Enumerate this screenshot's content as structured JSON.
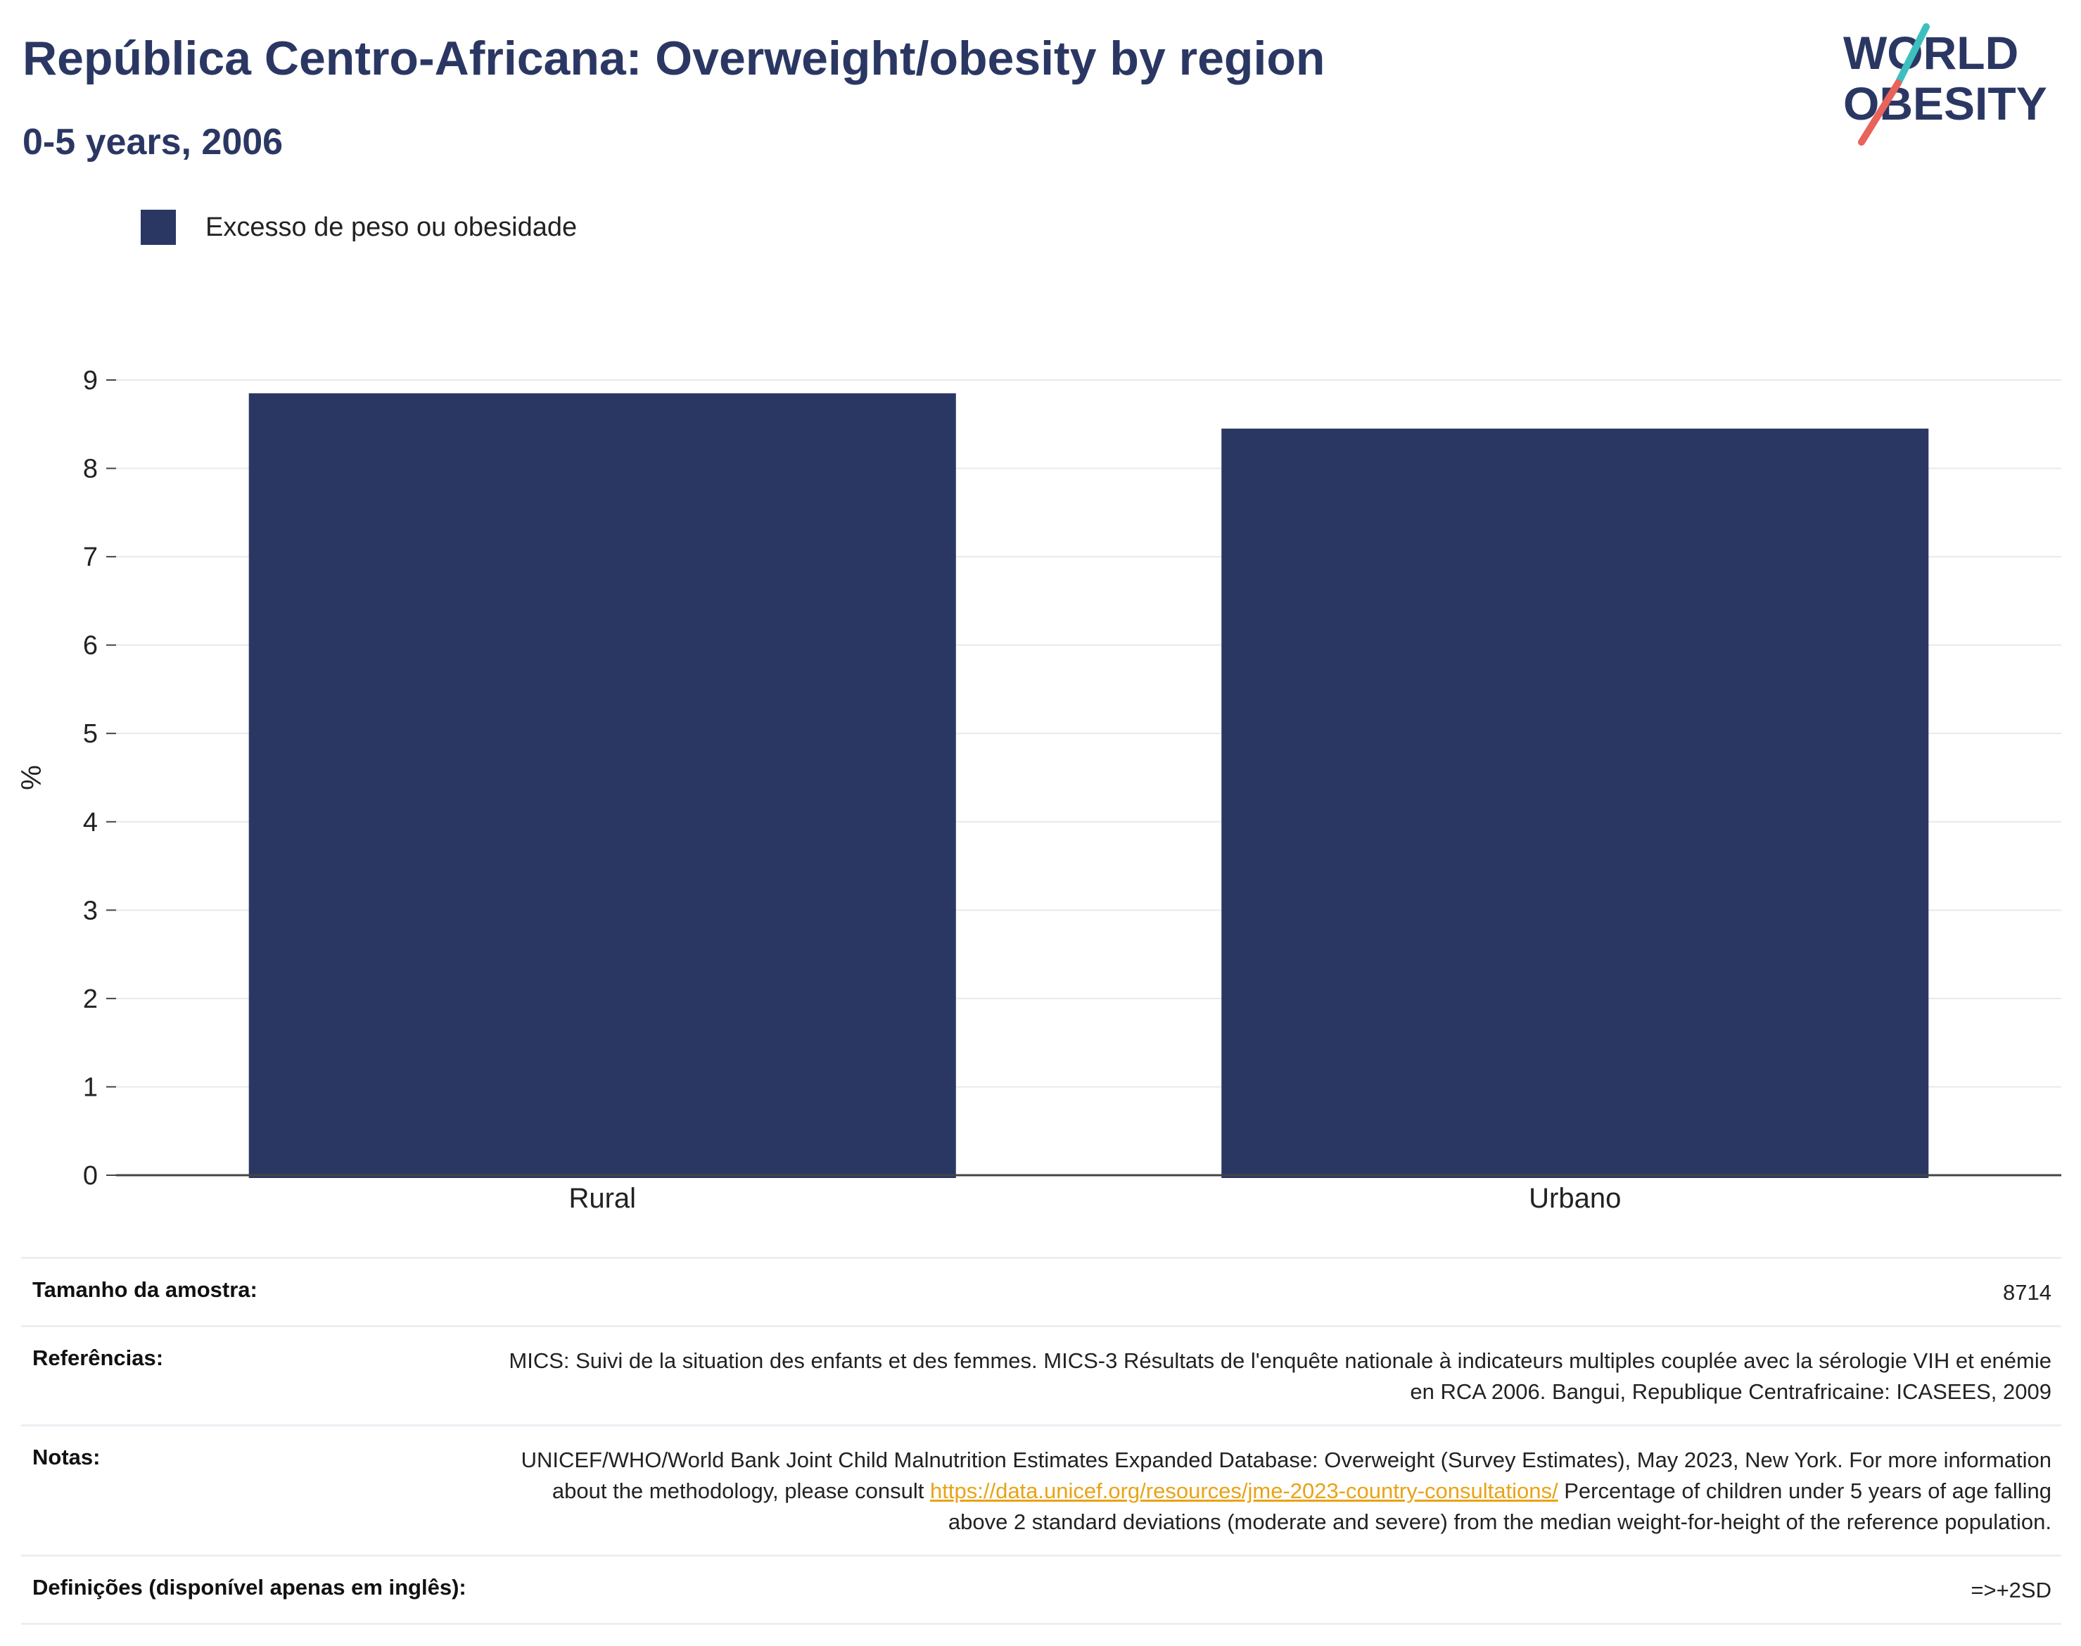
{
  "header": {
    "title": "República Centro-Africana: Overweight/obesity by region",
    "subtitle": "0-5 years, 2006"
  },
  "logo": {
    "line1": "WORLD",
    "line2": "OBESITY",
    "text_color": "#2b3763",
    "slash_top_color": "#3dbfbf",
    "slash_bottom_color": "#e8635a"
  },
  "legend": {
    "label": "Excesso de peso ou obesidade",
    "color": "#2b3763"
  },
  "chart_data": {
    "type": "bar",
    "categories": [
      "Rural",
      "Urbano"
    ],
    "series": [
      {
        "name": "Excesso de peso ou obesidade",
        "values": [
          8.85,
          8.45
        ],
        "color": "#2b3763"
      }
    ],
    "ylabel": "%",
    "ylim": [
      0,
      9
    ],
    "yticks": [
      0,
      1,
      2,
      3,
      4,
      5,
      6,
      7,
      8,
      9
    ],
    "grid": true,
    "legend_position": "top-left"
  },
  "info": {
    "sample": {
      "label": "Tamanho da amostra:",
      "value": "8714"
    },
    "references": {
      "label": "Referências:",
      "value": "MICS: Suivi de la situation des enfants et des femmes. MICS-3 Résultats de l'enquête nationale à indicateurs multiples couplée avec la sérologie VIH et enémie en RCA 2006. Bangui, Republique Centrafricaine: ICASEES, 2009"
    },
    "notes": {
      "label": "Notas:",
      "text_before": "UNICEF/WHO/World Bank Joint Child Malnutrition Estimates Expanded Database: Overweight (Survey Estimates), May 2023, New York. For more information about the methodology, please consult ",
      "link": "https://data.unicef.org/resources/jme-2023-country-consultations/",
      "text_after": " Percentage of children under 5 years of age falling above 2 standard deviations (moderate and severe) from the median weight-for-height of the reference population."
    },
    "definitions": {
      "label": "Definições (disponível apenas em inglês):",
      "value": "=>+2SD"
    }
  }
}
